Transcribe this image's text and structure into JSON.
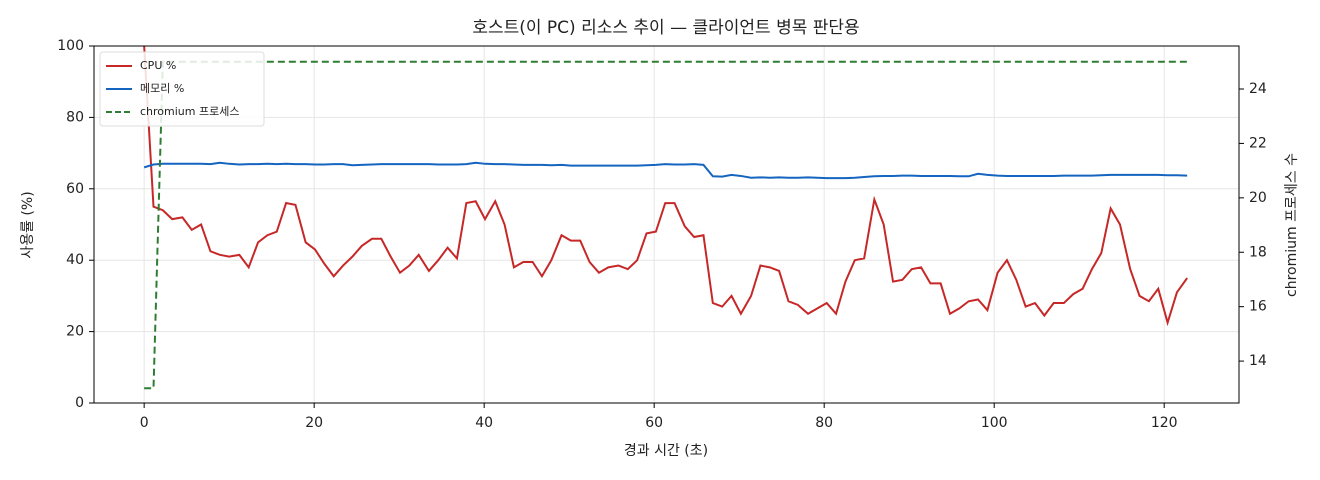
{
  "chart_data": {
    "type": "line",
    "title": "호스트(이 PC) 리소스 추이 — 클라이언트 병목 판단용",
    "x_label": "경과 시간 (초)",
    "y_label": "사용률 (%)",
    "y2_label": "chromium 프로세스 수",
    "x": [
      0,
      1.1,
      2.2,
      3.3,
      4.5,
      5.6,
      6.7,
      7.8,
      8.9,
      10.0,
      11.2,
      12.3,
      13.4,
      14.5,
      15.6,
      16.7,
      17.8,
      19.0,
      20.1,
      21.2,
      22.3,
      23.4,
      24.5,
      25.6,
      26.8,
      27.9,
      29.0,
      30.1,
      31.2,
      32.3,
      33.5,
      34.6,
      35.7,
      36.8,
      37.9,
      39.0,
      40.1,
      41.3,
      42.4,
      43.5,
      44.6,
      45.7,
      46.8,
      47.9,
      49.1,
      50.2,
      51.3,
      52.4,
      53.5,
      54.6,
      55.8,
      56.9,
      58.0,
      59.1,
      60.2,
      61.3,
      62.4,
      63.6,
      64.7,
      65.8,
      66.9,
      68.0,
      69.1,
      70.2,
      71.4,
      72.5,
      73.6,
      74.7,
      75.8,
      76.9,
      78.1,
      79.2,
      80.3,
      81.4,
      82.5,
      83.6,
      84.7,
      85.9,
      87.0,
      88.1,
      89.2,
      90.3,
      91.4,
      92.5,
      93.7,
      94.8,
      95.9,
      97.0,
      98.1,
      99.2,
      100.4,
      101.5,
      102.6,
      103.7,
      104.8,
      105.9,
      107.0,
      108.2,
      109.3,
      110.4,
      111.5,
      112.6,
      113.7,
      114.8,
      116.0,
      117.1,
      118.2,
      119.3,
      120.4,
      121.5,
      122.7
    ],
    "series": [
      {
        "name": "CPU %",
        "color": "#c62828",
        "dashed": false,
        "values": [
          100,
          55,
          54,
          51.5,
          52,
          48.5,
          50,
          42.5,
          41.5,
          41,
          41.5,
          38,
          45,
          47,
          48,
          56,
          55.5,
          45,
          43,
          39,
          35.5,
          38.5,
          41,
          44,
          46,
          46,
          41,
          36.5,
          38.5,
          41.5,
          37,
          40,
          43.5,
          40.5,
          56,
          56.5,
          51.5,
          56.5,
          50,
          38,
          39.5,
          39.5,
          35.5,
          40,
          47,
          45.5,
          45.5,
          39.5,
          36.5,
          38,
          38.5,
          37.5,
          40,
          47.5,
          48,
          56,
          56,
          49.5,
          46.5,
          47,
          28,
          27,
          30,
          25,
          30,
          38.5,
          38,
          37,
          28.5,
          27.5,
          25,
          26.5,
          28,
          25,
          34,
          40,
          40.5,
          57,
          50,
          34,
          34.5,
          37.5,
          38,
          33.5,
          33.5,
          25,
          26.5,
          28.5,
          29,
          26,
          36.5,
          40,
          34.5,
          27,
          28,
          24.5,
          28,
          28,
          30.5,
          32,
          37.5,
          42,
          54.5,
          50,
          37.5,
          30,
          28.5,
          32,
          22.5,
          31,
          35
        ]
      },
      {
        "name": "메모리 %",
        "color": "#1565c0",
        "dashed": false,
        "values": [
          66,
          66.8,
          67,
          67,
          67,
          67,
          67,
          66.9,
          67.3,
          67,
          66.8,
          66.9,
          66.9,
          67,
          66.9,
          67,
          66.9,
          66.9,
          66.8,
          66.8,
          66.9,
          66.9,
          66.6,
          66.7,
          66.8,
          66.9,
          66.9,
          66.9,
          66.9,
          66.9,
          66.9,
          66.8,
          66.8,
          66.8,
          66.9,
          67.3,
          67,
          66.9,
          66.9,
          66.8,
          66.7,
          66.7,
          66.7,
          66.6,
          66.7,
          66.5,
          66.5,
          66.5,
          66.5,
          66.5,
          66.5,
          66.5,
          66.5,
          66.6,
          66.7,
          66.9,
          66.8,
          66.8,
          66.9,
          66.7,
          63.5,
          63.4,
          63.9,
          63.6,
          63.1,
          63.2,
          63.1,
          63.2,
          63.1,
          63.1,
          63.2,
          63.1,
          63,
          63,
          63,
          63.1,
          63.3,
          63.5,
          63.6,
          63.6,
          63.7,
          63.7,
          63.6,
          63.6,
          63.6,
          63.6,
          63.5,
          63.5,
          64.2,
          63.9,
          63.7,
          63.6,
          63.6,
          63.6,
          63.6,
          63.6,
          63.6,
          63.7,
          63.7,
          63.7,
          63.7,
          63.8,
          63.9,
          63.9,
          63.9,
          63.9,
          63.9,
          63.9,
          63.8,
          63.8,
          63.7
        ]
      },
      {
        "name": "chromium 프로세스",
        "color": "#2e7d32",
        "dashed": true,
        "axis": "y2",
        "values": [
          13,
          13,
          25,
          25,
          25,
          25,
          25,
          25,
          25,
          25,
          25,
          25,
          25,
          25,
          25,
          25,
          25,
          25,
          25,
          25,
          25,
          25,
          25,
          25,
          25,
          25,
          25,
          25,
          25,
          25,
          25,
          25,
          25,
          25,
          25,
          25,
          25,
          25,
          25,
          25,
          25,
          25,
          25,
          25,
          25,
          25,
          25,
          25,
          25,
          25,
          25,
          25,
          25,
          25,
          25,
          25,
          25,
          25,
          25,
          25,
          25,
          25,
          25,
          25,
          25,
          25,
          25,
          25,
          25,
          25,
          25,
          25,
          25,
          25,
          25,
          25,
          25,
          25,
          25,
          25,
          25,
          25,
          25,
          25,
          25,
          25,
          25,
          25,
          25,
          25,
          25,
          25,
          25,
          25,
          25,
          25,
          25,
          25,
          25,
          25,
          25,
          25,
          25,
          25,
          25,
          25,
          25,
          25,
          25,
          25,
          25
        ]
      }
    ],
    "xlim": [
      -5.9,
      128.8
    ],
    "xticks": [
      0,
      20,
      40,
      60,
      80,
      100,
      120
    ],
    "ylim": [
      0,
      100
    ],
    "yticks": [
      0,
      20,
      40,
      60,
      80,
      100
    ],
    "y2lim": [
      12.46,
      25.58
    ],
    "y2ticks": [
      14,
      16,
      18,
      20,
      22,
      24
    ],
    "grid": true,
    "legend": "upper-left"
  }
}
